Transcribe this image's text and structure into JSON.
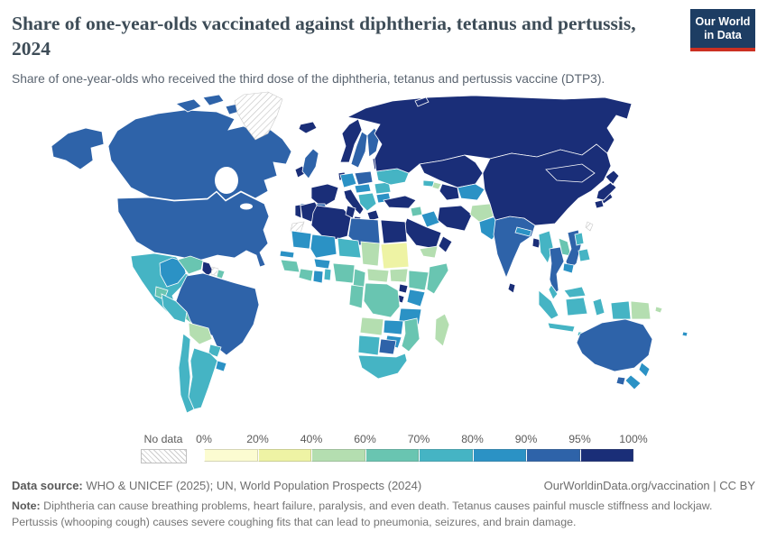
{
  "header": {
    "title": "Share of one-year-olds vaccinated against diphtheria, tetanus and pertussis, 2024",
    "subtitle": "Share of one-year-olds who received the third dose of the diphtheria, tetanus and pertussis vaccine (DTP3).",
    "logo": {
      "line1": "Our World",
      "line2": "in Data",
      "bg_color": "#1d3d63",
      "stripe_color": "#cb3022"
    }
  },
  "chart_data": {
    "type": "choropleth",
    "metric": "Share of one-year-olds vaccinated against diphtheria, tetanus and pertussis (DTP3)",
    "year": "2024",
    "unit": "%",
    "projection": "world",
    "ocean_color": "#ffffff",
    "border_color": "#ffffff",
    "tick_labels": [
      "0%",
      "20%",
      "40%",
      "60%",
      "70%",
      "80%",
      "90%",
      "95%",
      "100%"
    ],
    "bins": [
      {
        "range": "0-20%",
        "color": "#fcfcd1"
      },
      {
        "range": "20-40%",
        "color": "#eef3a4"
      },
      {
        "range": "40-60%",
        "color": "#b4deb0"
      },
      {
        "range": "60-70%",
        "color": "#69c5b1"
      },
      {
        "range": "70-80%",
        "color": "#45b4c4"
      },
      {
        "range": "80-90%",
        "color": "#2b92c5"
      },
      {
        "range": "90-95%",
        "color": "#2e63a9"
      },
      {
        "range": "95-100%",
        "color": "#1a2e78"
      }
    ],
    "no_data": {
      "label": "No data",
      "pattern": "diagonal-hatch"
    },
    "regions": {
      "usa-alaska": "90-95%",
      "canada": "90-95%",
      "canadian-arctic": "90-95%",
      "usa": "90-95%",
      "greenland": "no-data",
      "mexico": "70-80%",
      "central-america": "60-70%",
      "costa-rica": "95-100%",
      "panama": "80-90%",
      "cuba": "95-100%",
      "jamaica": "80-90%",
      "haiti": "40-60%",
      "dominican-republic": "80-90%",
      "puerto-rico": "90-95%",
      "colombia": "80-90%",
      "venezuela": "60-70%",
      "guyana": "95-100%",
      "suriname": "no-data",
      "french-guiana": "60-70%",
      "ecuador": "60-70%",
      "peru": "70-80%",
      "brazil": "90-95%",
      "bolivia": "40-60%",
      "paraguay": "70-80%",
      "uruguay": "80-90%",
      "chile": "70-80%",
      "argentina": "70-80%",
      "iceland": "95-100%",
      "ireland": "95-100%",
      "uk": "90-95%",
      "norway": "95-100%",
      "sweden": "90-95%",
      "finland": "90-95%",
      "denmark": "95-100%",
      "baltic-states": "95-100%",
      "belarus": "95-100%",
      "poland": "90-95%",
      "germany": "80-90%",
      "france": "95-100%",
      "spain": "90-95%",
      "portugal": "95-100%",
      "italy": "95-100%",
      "czech-austria": "80-90%",
      "balkans": "70-80%",
      "greece": "95-100%",
      "romania": "70-80%",
      "bulgaria": "80-90%",
      "ukraine": "70-80%",
      "russia": "95-100%",
      "arctic-islands": "95-100%",
      "kazakhstan": "95-100%",
      "central-asia": "80-90%",
      "turkmenistan": "95-100%",
      "georgia": "70-80%",
      "azerbaijan": "40-60%",
      "turkey": "95-100%",
      "syria": "60-70%",
      "iraq": "80-90%",
      "iran": "95-100%",
      "afghanistan": "40-60%",
      "pakistan": "80-90%",
      "saudi-arabia": "95-100%",
      "yemen": "40-60%",
      "oman": "95-100%",
      "india": "90-95%",
      "sri-lanka": "95-100%",
      "nepal": "80-90%",
      "bangladesh": "95-100%",
      "myanmar": "70-80%",
      "thailand": "90-95%",
      "laos": "60-70%",
      "cambodia": "80-90%",
      "vietnam": "90-95%",
      "china": "95-100%",
      "mongolia": "95-100%",
      "korea": "95-100%",
      "japan": "95-100%",
      "taiwan": "no-data",
      "philippines": "70-80%",
      "malaysia": "70-80%",
      "indonesia": "70-80%",
      "papua-new-guinea": "40-60%",
      "solomon-islands": "40-60%",
      "fiji": "80-90%",
      "australia": "90-95%",
      "new-zealand": "80-90%",
      "morocco": "95-100%",
      "western-sahara": "no-data",
      "algeria": "95-100%",
      "tunisia": "95-100%",
      "libya": "90-95%",
      "egypt": "95-100%",
      "mauritania": "80-90%",
      "mali": "80-90%",
      "niger": "70-80%",
      "chad": "40-60%",
      "sudan": "20-40%",
      "senegal": "80-90%",
      "guinea": "60-70%",
      "cote-divoire": "60-70%",
      "ghana": "80-90%",
      "burkina-faso": "80-90%",
      "benin-togo": "70-80%",
      "nigeria": "60-70%",
      "cameroon": "60-70%",
      "central-african-republic": "40-60%",
      "south-sudan": "40-60%",
      "ethiopia": "60-70%",
      "somalia": "60-70%",
      "uganda": "95-100%",
      "kenya": "80-90%",
      "rwanda-burundi": "95-100%",
      "congo-gabon": "60-70%",
      "drc": "60-70%",
      "tanzania": "80-90%",
      "angola": "40-60%",
      "zambia": "80-90%",
      "mozambique": "60-70%",
      "zimbabwe": "80-90%",
      "namibia": "70-80%",
      "botswana": "90-95%",
      "south-africa": "70-80%",
      "madagascar": "40-60%"
    }
  },
  "legend": {
    "no_data_label": "No data"
  },
  "footer": {
    "source_label": "Data source:",
    "source_text": " WHO & UNICEF (2025); UN, World Population Prospects (2024)",
    "link_text": "OurWorldinData.org/vaccination",
    "license_text": " | CC BY",
    "note_label": "Note:",
    "note_text": " Diphtheria can cause breathing problems, heart failure, paralysis, and even death. Tetanus causes painful muscle stiffness and lockjaw. Pertussis (whooping cough) causes severe coughing fits that can lead to pneumonia, seizures, and brain damage."
  }
}
